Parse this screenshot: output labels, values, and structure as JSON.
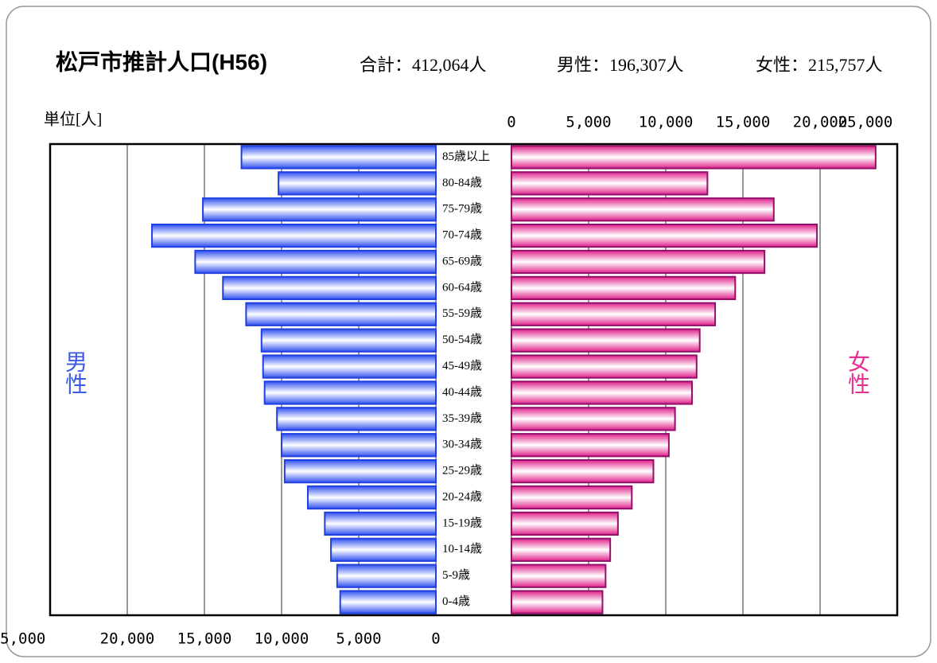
{
  "chart_data": {
    "type": "pyramid",
    "title": "松戸市推計人口(H56)",
    "totals": [
      "合計：412,064人",
      "男性：196,307人",
      "女性：215,757人"
    ],
    "unit_label": "単位[人]",
    "categories": [
      "85歳以上",
      "80-84歳",
      "75-79歳",
      "70-74歳",
      "65-69歳",
      "60-64歳",
      "55-59歳",
      "50-54歳",
      "45-49歳",
      "40-44歳",
      "35-39歳",
      "30-34歳",
      "25-29歳",
      "20-24歳",
      "15-19歳",
      "10-14歳",
      "5-9歳",
      "0-4歳"
    ],
    "series": [
      {
        "name": "男性",
        "color": "#3050f0",
        "border": "#2040e0",
        "label_color": "#3a5ae8",
        "values": [
          12600,
          10200,
          15100,
          18400,
          15600,
          13800,
          12300,
          11300,
          11200,
          11100,
          10300,
          10000,
          9800,
          8300,
          7200,
          6800,
          6400,
          6200
        ]
      },
      {
        "name": "女性",
        "color": "#e0208a",
        "border": "#90106a",
        "label_color": "#e83090",
        "values": [
          23600,
          12700,
          17000,
          19800,
          16400,
          14500,
          13200,
          12200,
          12000,
          11700,
          10600,
          10200,
          9200,
          7800,
          6900,
          6400,
          6100,
          5900
        ]
      }
    ],
    "xlim": [
      0,
      25000
    ],
    "xticks": [
      0,
      {
        "value": 5000,
        "label": "5,000"
      },
      {
        "value": 10000,
        "label": "10,000"
      },
      {
        "value": 15000,
        "label": "15,000"
      },
      {
        "value": 20000,
        "label": "20,000"
      },
      {
        "value": 25000,
        "label": "25,000"
      }
    ],
    "grid": true
  }
}
